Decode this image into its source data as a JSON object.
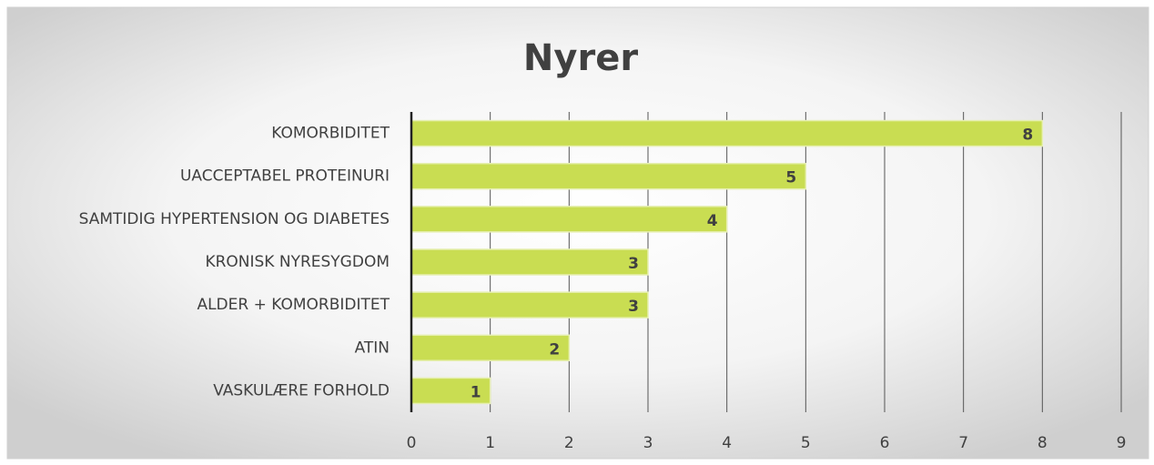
{
  "chart_data": {
    "type": "bar",
    "orientation": "horizontal",
    "title": "Nyrer",
    "categories": [
      "KOMORBIDITET",
      "UACCEPTABEL PROTEINURI",
      "SAMTIDIG HYPERTENSION OG DIABETES",
      "KRONISK NYRESYGDOM",
      "ALDER + KOMORBIDITET",
      "ATIN",
      "VASKULÆRE FORHOLD"
    ],
    "values": [
      8,
      5,
      4,
      3,
      3,
      2,
      1
    ],
    "color": "#c9dd52",
    "xlim": [
      0,
      9
    ],
    "xticks": [
      0,
      1,
      2,
      3,
      4,
      5,
      6,
      7,
      8,
      9
    ],
    "grid": true
  }
}
